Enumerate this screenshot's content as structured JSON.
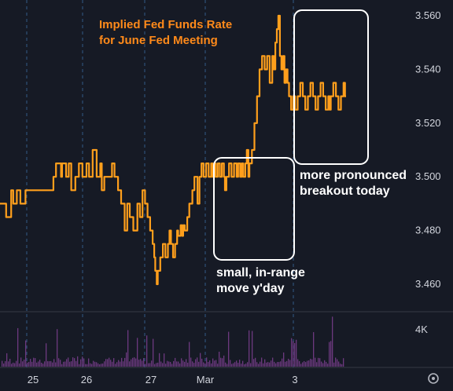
{
  "chart_data": {
    "type": "line",
    "title": "Implied Fed Funds Rate\nfor June Fed Meeting",
    "y_ticks": [
      "3.560",
      "3.540",
      "3.520",
      "3.500",
      "3.480",
      "3.460"
    ],
    "ylim": [
      3.455,
      3.563
    ],
    "x_ticks": [
      "25",
      "26",
      "27",
      "Mar",
      "3"
    ],
    "volume_tick": "4K",
    "grid": "vertical dashed session lines",
    "line_color": "#ff9f1c",
    "series": [
      {
        "x": [
          0,
          0.12,
          0.22,
          0.26,
          0.33,
          0.4,
          0.5,
          0.55,
          0.7,
          0.78,
          0.9,
          1.0,
          1.05,
          1.1,
          1.2,
          1.22,
          1.3,
          1.35,
          1.4,
          1.48,
          1.55,
          1.62,
          1.7,
          1.75,
          1.82,
          1.9,
          1.97,
          2.0,
          2.05,
          2.12,
          2.2,
          2.25,
          2.32,
          2.38,
          2.45,
          2.5,
          2.55,
          2.62,
          2.7,
          2.75,
          2.8,
          2.85,
          2.9,
          2.95,
          3.0,
          3.03,
          3.05,
          3.08,
          3.1,
          3.15,
          3.2,
          3.25,
          3.3,
          3.33,
          3.36,
          3.4,
          3.44,
          3.48,
          3.5,
          3.55,
          3.58,
          3.6,
          3.63,
          3.68,
          3.72,
          3.78,
          3.82,
          3.88,
          3.92,
          3.96,
          4.0,
          4.05,
          4.1,
          4.15,
          4.18,
          4.21,
          4.24,
          4.28,
          4.32,
          4.36,
          4.4,
          4.42,
          4.45,
          4.5,
          4.55,
          4.6,
          4.65,
          4.68,
          4.72,
          4.75,
          4.78,
          4.82,
          4.85,
          4.88,
          4.9,
          4.95,
          5.0,
          5.05,
          5.1,
          5.15,
          5.2,
          5.25,
          5.3,
          5.35,
          5.38,
          5.41,
          5.44,
          5.47,
          5.5,
          5.53,
          5.56,
          5.59,
          5.62,
          5.65,
          5.68,
          5.72,
          5.76,
          5.8,
          5.85,
          5.9,
          5.95,
          6.0,
          6.05,
          6.1,
          6.15,
          6.2,
          6.25,
          6.3,
          6.35,
          6.4,
          6.45,
          6.48,
          6.5,
          6.55,
          6.6,
          6.65,
          6.7,
          6.75,
          6.78,
          6.8
        ],
        "y": [
          3.49,
          3.485,
          3.495,
          3.49,
          3.495,
          3.49,
          3.495,
          3.495,
          3.495,
          3.495,
          3.495,
          3.495,
          3.5,
          3.505,
          3.5,
          3.505,
          3.5,
          3.505,
          3.495,
          3.5,
          3.505,
          3.5,
          3.505,
          3.5,
          3.51,
          3.5,
          3.505,
          3.495,
          3.5,
          3.5,
          3.505,
          3.5,
          3.495,
          3.49,
          3.48,
          3.49,
          3.485,
          3.48,
          3.49,
          3.485,
          3.495,
          3.49,
          3.485,
          3.48,
          3.475,
          3.47,
          3.465,
          3.46,
          3.465,
          3.47,
          3.475,
          3.47,
          3.475,
          3.48,
          3.475,
          3.47,
          3.475,
          3.48,
          3.478,
          3.482,
          3.478,
          3.482,
          3.48,
          3.485,
          3.49,
          3.495,
          3.5,
          3.49,
          3.5,
          3.505,
          3.5,
          3.505,
          3.5,
          3.505,
          3.5,
          3.505,
          3.5,
          3.505,
          3.5,
          3.505,
          3.5,
          3.495,
          3.5,
          3.505,
          3.5,
          3.505,
          3.5,
          3.505,
          3.5,
          3.505,
          3.5,
          3.505,
          3.51,
          3.5,
          3.505,
          3.51,
          3.52,
          3.53,
          3.54,
          3.545,
          3.54,
          3.545,
          3.535,
          3.545,
          3.54,
          3.55,
          3.555,
          3.56,
          3.545,
          3.54,
          3.545,
          3.535,
          3.54,
          3.535,
          3.53,
          3.525,
          3.53,
          3.525,
          3.53,
          3.535,
          3.53,
          3.525,
          3.53,
          3.535,
          3.53,
          3.525,
          3.53,
          3.535,
          3.53,
          3.525,
          3.53,
          3.525,
          3.53,
          3.535,
          3.53,
          3.525,
          3.53,
          3.535,
          3.53,
          3.53
        ]
      }
    ],
    "annotations": [
      "small, in-range\nmove y'day",
      "more pronounced\nbreakout today"
    ]
  },
  "settings_icon": "gear-icon"
}
